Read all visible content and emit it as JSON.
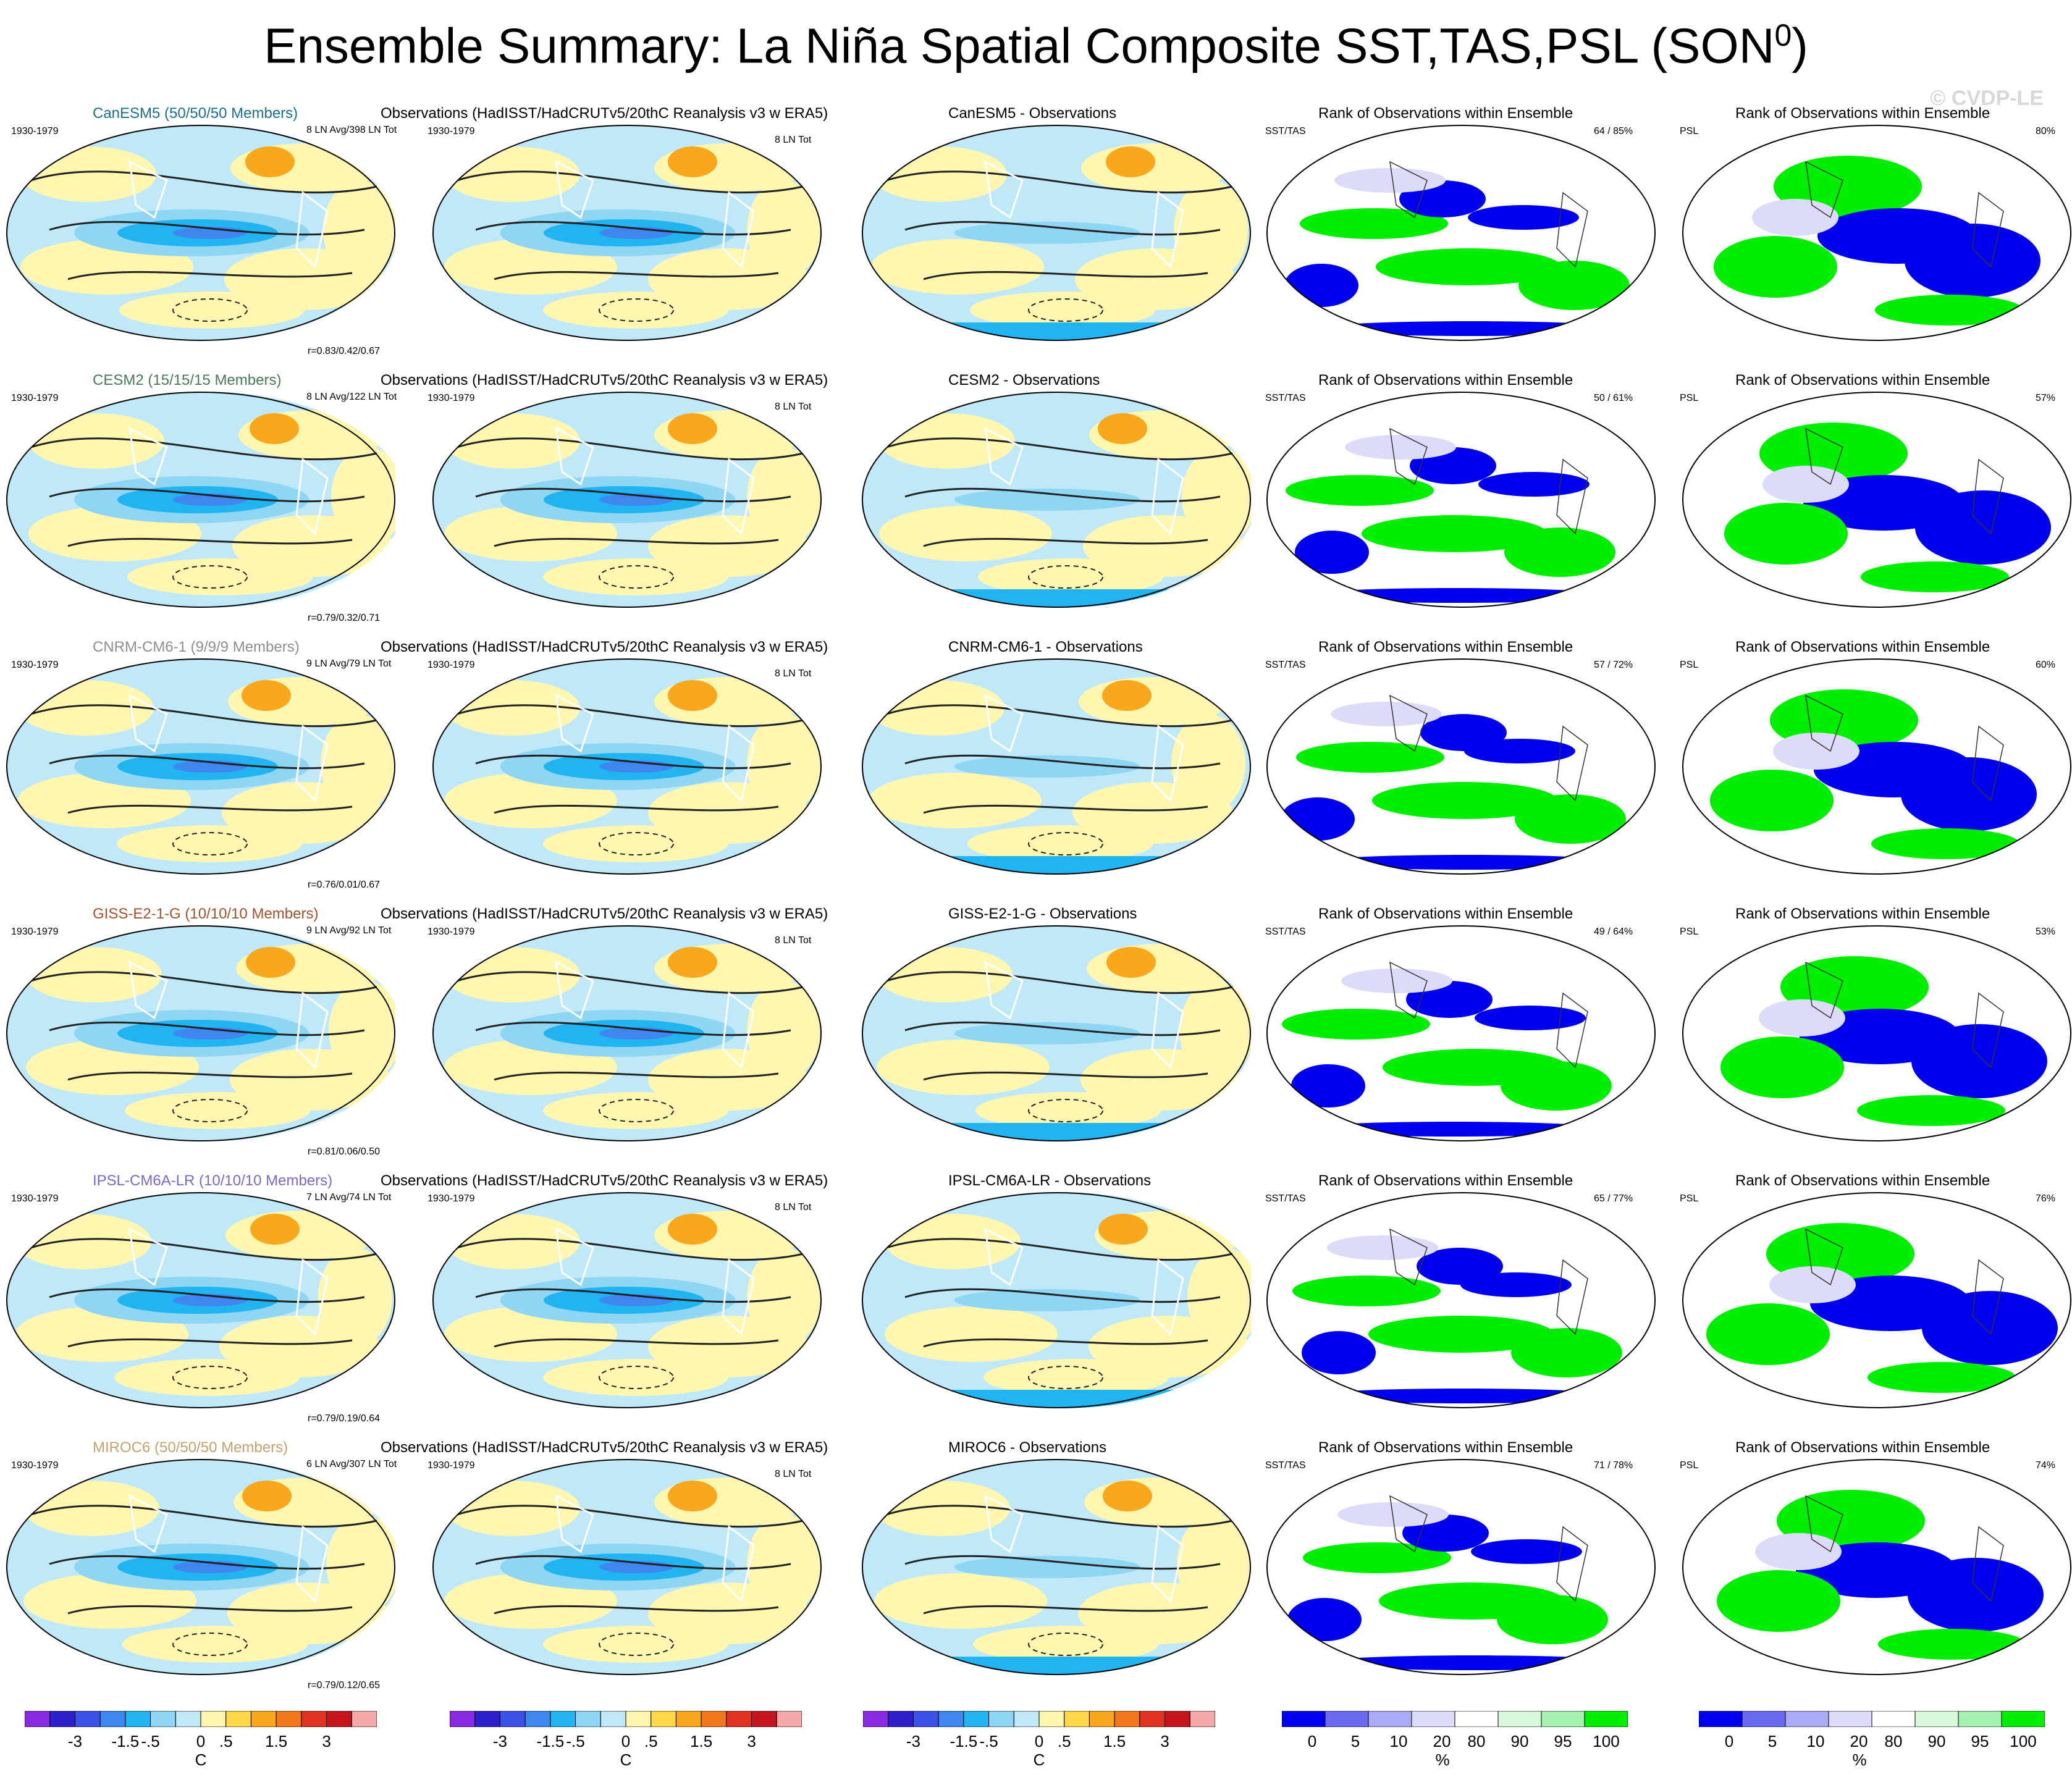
{
  "title": "Ensemble Summary: La Niña Spatial Composite SST,TAS,PSL (SON",
  "title_sup": "0",
  "title_close": ")",
  "watermark": "© CVDP-LE",
  "period": "1930-1979",
  "obs_title": "Observations (HadISST/HadCRUTv5/20thC Reanalysis v3 w ERA5)",
  "obs_count": "8 LN Tot",
  "rank_title": "Rank of Observations within Ensemble",
  "label_sst": "SST/TAS",
  "label_psl": "PSL",
  "colors": {
    "temp_scale": [
      "#8a2be2",
      "#2b20cc",
      "#3b52e6",
      "#3f86ee",
      "#21b4f0",
      "#8fd6f5",
      "#bfe8f8",
      "#fff6b0",
      "#ffd84a",
      "#f9a71c",
      "#f0771a",
      "#e03322",
      "#c4161c",
      "#f5a8a8"
    ],
    "rank_scale": [
      "#0000ee",
      "#6a6af0",
      "#aaaaf5",
      "#dcdcfa",
      "#ffffff",
      "#d8f8dc",
      "#a6f0b0",
      "#00ee00"
    ],
    "model_title_colors": [
      "#1b6f8a",
      "#4a7a55",
      "#8f8f8f",
      "#a0522d",
      "#7b68c8",
      "#c8a070"
    ]
  },
  "colorbar_temp": {
    "ticks": [
      "-3",
      "-1.5",
      "-.5",
      "0",
      ".5",
      "1.5",
      "3"
    ],
    "unit": "C"
  },
  "colorbar_rank": {
    "ticks": [
      "0",
      "5",
      "10",
      "20",
      "80",
      "90",
      "95",
      "100"
    ],
    "unit": "%"
  },
  "rows": [
    {
      "model": "CanESM5 (50/50/50 Members)",
      "ln": "8 LN Avg/398 LN Tot",
      "r": "r=0.83/0.42/0.67",
      "diff": "CanESM5 - Observations",
      "sst_pct": "64 / 85%",
      "psl_pct": "80%"
    },
    {
      "model": "CESM2 (15/15/15 Members)",
      "ln": "8 LN Avg/122 LN Tot",
      "r": "r=0.79/0.32/0.71",
      "diff": "CESM2 - Observations",
      "sst_pct": "50 / 61%",
      "psl_pct": "57%"
    },
    {
      "model": "CNRM-CM6-1 (9/9/9 Members)",
      "ln": "9 LN Avg/79 LN Tot",
      "r": "r=0.76/0.01/0.67",
      "diff": "CNRM-CM6-1 - Observations",
      "sst_pct": "57 / 72%",
      "psl_pct": "60%"
    },
    {
      "model": "GISS-E2-1-G (10/10/10 Members)",
      "ln": "9 LN Avg/92 LN Tot",
      "r": "r=0.81/0.06/0.50",
      "diff": "GISS-E2-1-G - Observations",
      "sst_pct": "49 / 64%",
      "psl_pct": "53%"
    },
    {
      "model": "IPSL-CM6A-LR (10/10/10 Members)",
      "ln": "7 LN Avg/74 LN Tot",
      "r": "r=0.79/0.19/0.64",
      "diff": "IPSL-CM6A-LR - Observations",
      "sst_pct": "65 / 77%",
      "psl_pct": "76%"
    },
    {
      "model": "MIROC6 (50/50/50 Members)",
      "ln": "6 LN Avg/307 LN Tot",
      "r": "r=0.79/0.12/0.65",
      "diff": "MIROC6 - Observations",
      "sst_pct": "71 / 78%",
      "psl_pct": "74%"
    }
  ]
}
